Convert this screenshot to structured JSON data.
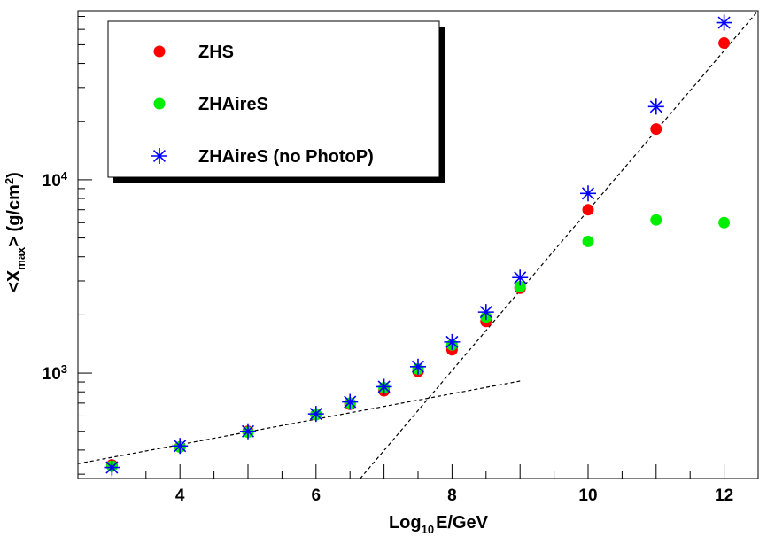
{
  "chart_data": {
    "type": "scatter",
    "title": "",
    "xlabel": {
      "prefix": "Log",
      "sub": "10",
      "suffix": "E/GeV"
    },
    "ylabel": {
      "prefix": "<X",
      "sub": "max",
      "middle": "> (g/cm",
      "sup": "2",
      "suffix": ")"
    },
    "xlim": [
      2.5,
      12.5
    ],
    "ylim": [
      285,
      75000
    ],
    "yscale": "log",
    "x_ticks": [
      4,
      6,
      8,
      10,
      12
    ],
    "x_tick_labels": [
      "4",
      "6",
      "8",
      "10",
      "12"
    ],
    "y_ticks": [
      1000,
      10000
    ],
    "y_tick_labels": [
      {
        "base": "10",
        "exp": "3"
      },
      {
        "base": "10",
        "exp": "4"
      }
    ],
    "grid": false,
    "legend_position": "top-left",
    "series": [
      {
        "name": "ZHS",
        "marker": "circle",
        "color": "#ff0000",
        "x": [
          3,
          4,
          5,
          6,
          6.5,
          7,
          7.5,
          8,
          8.5,
          9,
          10,
          11,
          12
        ],
        "y": [
          335,
          415,
          500,
          610,
          690,
          810,
          1020,
          1320,
          1850,
          2750,
          7000,
          18300,
          51000
        ]
      },
      {
        "name": "ZHAireS",
        "marker": "circle",
        "color": "#00ee00",
        "x": [
          3,
          4,
          5,
          6,
          6.5,
          7,
          7.5,
          8,
          8.5,
          9,
          10,
          11,
          12
        ],
        "y": [
          330,
          415,
          495,
          610,
          700,
          840,
          1050,
          1400,
          1950,
          2800,
          4800,
          6200,
          6000
        ]
      },
      {
        "name": "ZHAireS (no PhotoP)",
        "marker": "asterisk",
        "color": "#0000ff",
        "x": [
          3,
          4,
          5,
          6,
          6.5,
          7,
          7.5,
          8,
          8.5,
          9,
          10,
          11,
          12
        ],
        "y": [
          325,
          420,
          500,
          615,
          710,
          850,
          1080,
          1450,
          2070,
          3120,
          8500,
          23900,
          65000
        ]
      }
    ],
    "fit_lines": [
      {
        "style": "dashed",
        "color": "#000000",
        "x": [
          2.5,
          9.0
        ],
        "y": [
          340,
          910
        ]
      },
      {
        "style": "dashed",
        "color": "#000000",
        "x": [
          6.65,
          12.5
        ],
        "y": [
          285,
          75000
        ]
      }
    ],
    "legend": [
      {
        "label": "ZHS",
        "marker": "circle",
        "color": "#ff0000"
      },
      {
        "label": "ZHAireS",
        "marker": "circle",
        "color": "#00ee00"
      },
      {
        "label": "ZHAireS (no PhotoP)",
        "marker": "asterisk",
        "color": "#0000ff"
      }
    ]
  }
}
